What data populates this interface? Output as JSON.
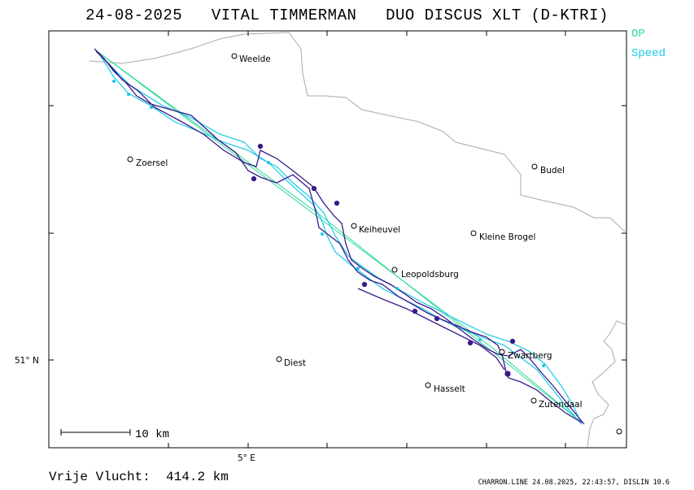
{
  "title": "24-08-2025   VITAL TIMMERMAN   DUO DISCUS XLT (D-KTRI)",
  "legend": {
    "op": {
      "label": "OP",
      "color": "#2fd89a"
    },
    "speed": {
      "label": "Speed",
      "color": "#18c8e6"
    }
  },
  "axes": {
    "lat_label": "51° N",
    "lon_label": "5° E"
  },
  "places": [
    {
      "name": "Weelde"
    },
    {
      "name": "Zoersel"
    },
    {
      "name": "Budel"
    },
    {
      "name": "Keiheuvel"
    },
    {
      "name": "Kleine Brogel"
    },
    {
      "name": "Leopoldsburg"
    },
    {
      "name": "Diest"
    },
    {
      "name": "Zwartberg"
    },
    {
      "name": "Hasselt"
    },
    {
      "name": "Zutendaal"
    }
  ],
  "scale_label": "10 km",
  "distance": {
    "label": "Vrije Vlucht:",
    "value": "414.2 km"
  },
  "stamp": "CHARRON.LINE 24.08.2025, 22:43:57, DISLIN 10.6",
  "colors": {
    "track": "#3a1a8c",
    "op": "#2fd89a",
    "speed": "#18c8e6",
    "border": "#aaaaaa"
  }
}
